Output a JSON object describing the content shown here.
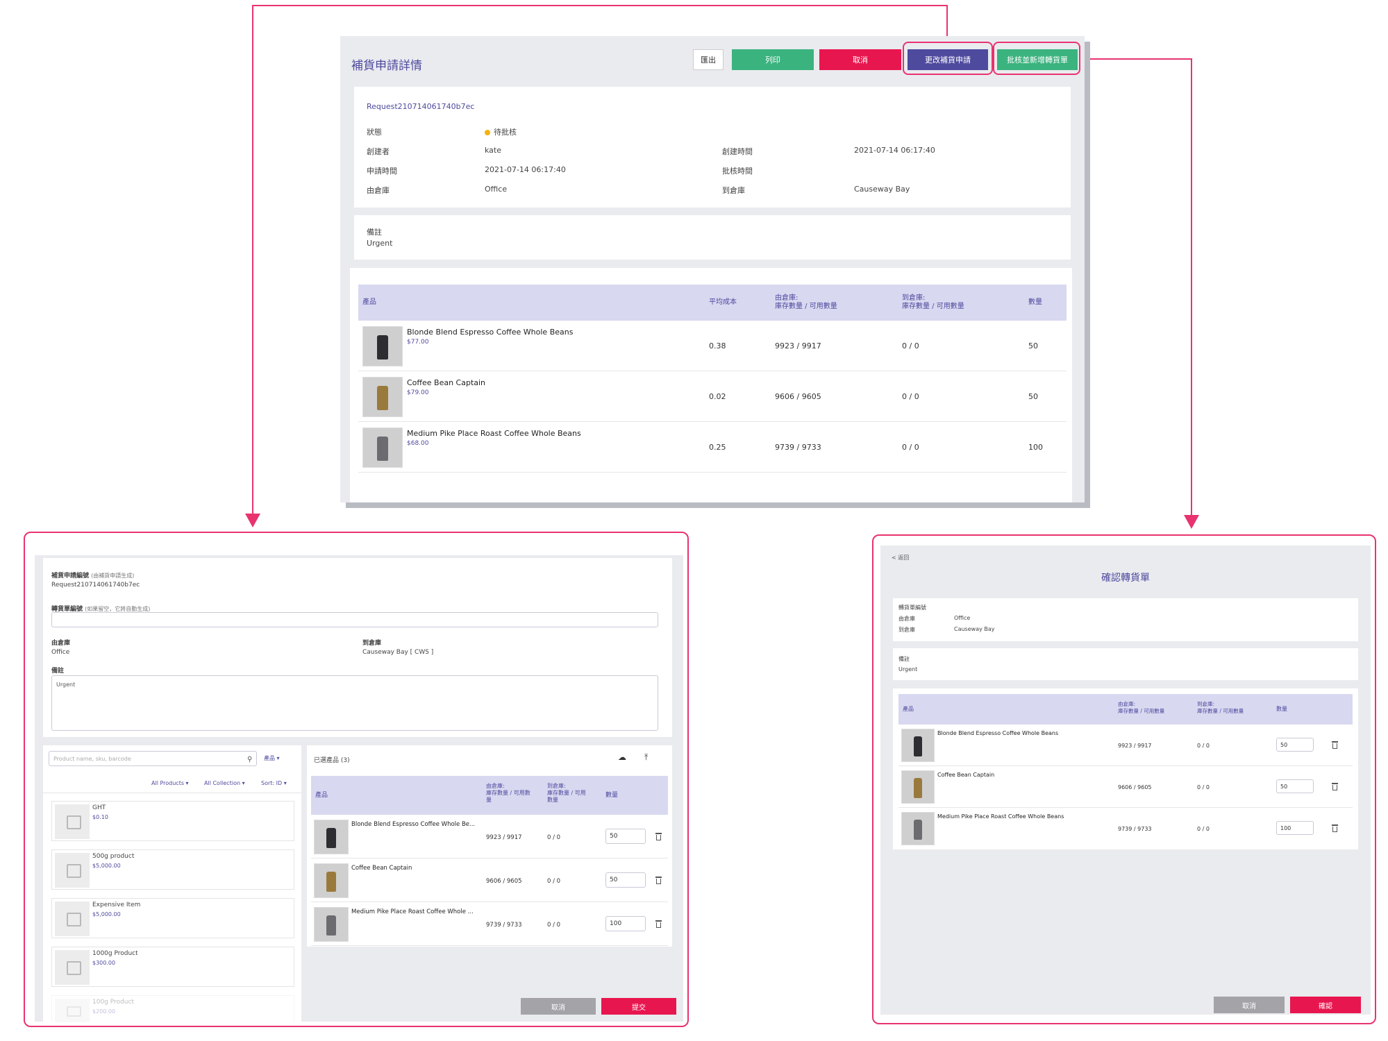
{
  "top": {
    "title": "補貨申請詳情",
    "buttons": {
      "export": "匯出",
      "print": "列印",
      "cancel": "取消",
      "edit": "更改補貨申請",
      "approve": "批核並新增轉貨單"
    },
    "request_id": "Request210714061740b7ec",
    "fields": {
      "status_label": "狀態",
      "status_value": "待批核",
      "creator_label": "創建者",
      "creator_value": "kate",
      "created_time_label": "創建時間",
      "created_time_value": "2021-07-14 06:17:40",
      "request_time_label": "申請時間",
      "request_time_value": "2021-07-14 06:17:40",
      "approve_time_label": "批核時間",
      "from_label": "由倉庫",
      "from_value": "Office",
      "to_label": "到倉庫",
      "to_value": "Causeway Bay"
    },
    "remarks_label": "備註",
    "remarks_value": "Urgent",
    "table": {
      "headers": {
        "product": "產品",
        "avg_cost": "平均成本",
        "from_stock_1": "由倉庫:",
        "from_stock_2": "庫存數量 / 可用數量",
        "to_stock_1": "到倉庫:",
        "to_stock_2": "庫存數量 / 可用數量",
        "qty": "數量"
      },
      "rows": [
        {
          "name": "Blonde Blend Espresso Coffee Whole Beans",
          "price": "$77.00",
          "cost": "0.38",
          "from": "9923 / 9917",
          "to": "0 / 0",
          "qty": "50"
        },
        {
          "name": "Coffee Bean Captain",
          "price": "$79.00",
          "cost": "0.02",
          "from": "9606 / 9605",
          "to": "0 / 0",
          "qty": "50"
        },
        {
          "name": "Medium Pike Place Roast Coffee Whole Beans",
          "price": "$68.00",
          "cost": "0.25",
          "from": "9739 / 9733",
          "to": "0 / 0",
          "qty": "100"
        }
      ]
    }
  },
  "left": {
    "request_no_label": "補貨申請編號",
    "request_no_hint": "(由補貨申請生成)",
    "request_no_value": "Request210714061740b7ec",
    "transfer_no_label": "轉貨單編號",
    "transfer_no_hint": "(如果留空，它將自動生成)",
    "from_label": "由倉庫",
    "from_value": "Office",
    "to_label": "到倉庫",
    "to_value": "Causeway Bay [ CWS ]",
    "remarks_label": "備註",
    "remarks_value": "Urgent",
    "search_placeholder": "Product name, sku, barcode",
    "product_dropdown": "產品 ▾",
    "filters": {
      "all_products": "All Products ▾",
      "all_collection": "All Collection ▾",
      "sort": "Sort: ID ▾"
    },
    "catalog": [
      {
        "name": "GHT",
        "price": "$0.10"
      },
      {
        "name": "500g product",
        "price": "$5,000.00"
      },
      {
        "name": "Expensive Item",
        "price": "$5,000.00"
      },
      {
        "name": "1000g Product",
        "price": "$300.00"
      },
      {
        "name": "100g Product",
        "price": "$200.00"
      }
    ],
    "selected_title": "已選產品 (3)",
    "table_headers": {
      "product": "產品",
      "from_1": "由倉庫:",
      "from_2": "庫存數量 / 可用數",
      "from_3": "量",
      "to_1": "到倉庫:",
      "to_2": "庫存數量 / 可用",
      "to_3": "數量",
      "qty": "數量"
    },
    "rows": [
      {
        "name": "Blonde Blend Espresso Coffee Whole Be...",
        "from": "9923 / 9917",
        "to": "0 / 0",
        "qty": "50"
      },
      {
        "name": "Coffee Bean Captain",
        "from": "9606 / 9605",
        "to": "0 / 0",
        "qty": "50"
      },
      {
        "name": "Medium Pike Place Roast Coffee Whole ...",
        "from": "9739 / 9733",
        "to": "0 / 0",
        "qty": "100"
      }
    ],
    "cancel": "取消",
    "submit": "提交"
  },
  "right": {
    "back": "< 返回",
    "title": "確認轉貨單",
    "transfer_no_label": "轉貨單編號",
    "from_label": "由倉庫",
    "from_value": "Office",
    "to_label": "到倉庫",
    "to_value": "Causeway Bay",
    "remarks_label": "備註",
    "remarks_value": "Urgent",
    "table_headers": {
      "product": "產品",
      "from_1": "由倉庫:",
      "from_2": "庫存數量 / 可用數量",
      "to_1": "到倉庫:",
      "to_2": "庫存數量 / 可用數量",
      "qty": "數量"
    },
    "rows": [
      {
        "name": "Blonde Blend Espresso Coffee Whole Beans",
        "from": "9923 / 9917",
        "to": "0 / 0",
        "qty": "50"
      },
      {
        "name": "Coffee Bean Captain",
        "from": "9606 / 9605",
        "to": "0 / 0",
        "qty": "50"
      },
      {
        "name": "Medium Pike Place Roast Coffee Whole Beans",
        "from": "9739 / 9733",
        "to": "0 / 0",
        "qty": "100"
      }
    ],
    "cancel": "取消",
    "confirm": "確認"
  },
  "colors": {
    "accent": "#e8336e",
    "brand": "#4e4a9e",
    "green": "#3bb37f",
    "red": "#e8164f",
    "grey": "#a3a3a8"
  }
}
